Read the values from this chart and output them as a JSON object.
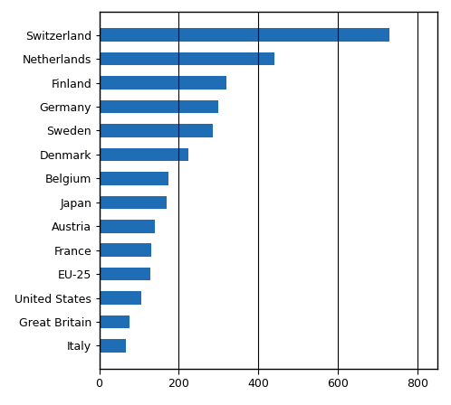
{
  "categories": [
    "Switzerland",
    "Netherlands",
    "Finland",
    "Germany",
    "Sweden",
    "Denmark",
    "Belgium",
    "Japan",
    "Austria",
    "France",
    "EU-25",
    "United States",
    "Great Britain",
    "Italy"
  ],
  "values": [
    730,
    440,
    320,
    300,
    285,
    225,
    175,
    170,
    140,
    130,
    128,
    105,
    75,
    68
  ],
  "bar_color": "#1F6EB5",
  "xlim": [
    0,
    850
  ],
  "xticks": [
    0,
    200,
    400,
    600,
    800
  ],
  "background_color": "#ffffff",
  "bar_height": 0.55,
  "grid_color": "#000000",
  "spine_color": "#000000",
  "tick_fontsize": 9,
  "label_fontsize": 9
}
